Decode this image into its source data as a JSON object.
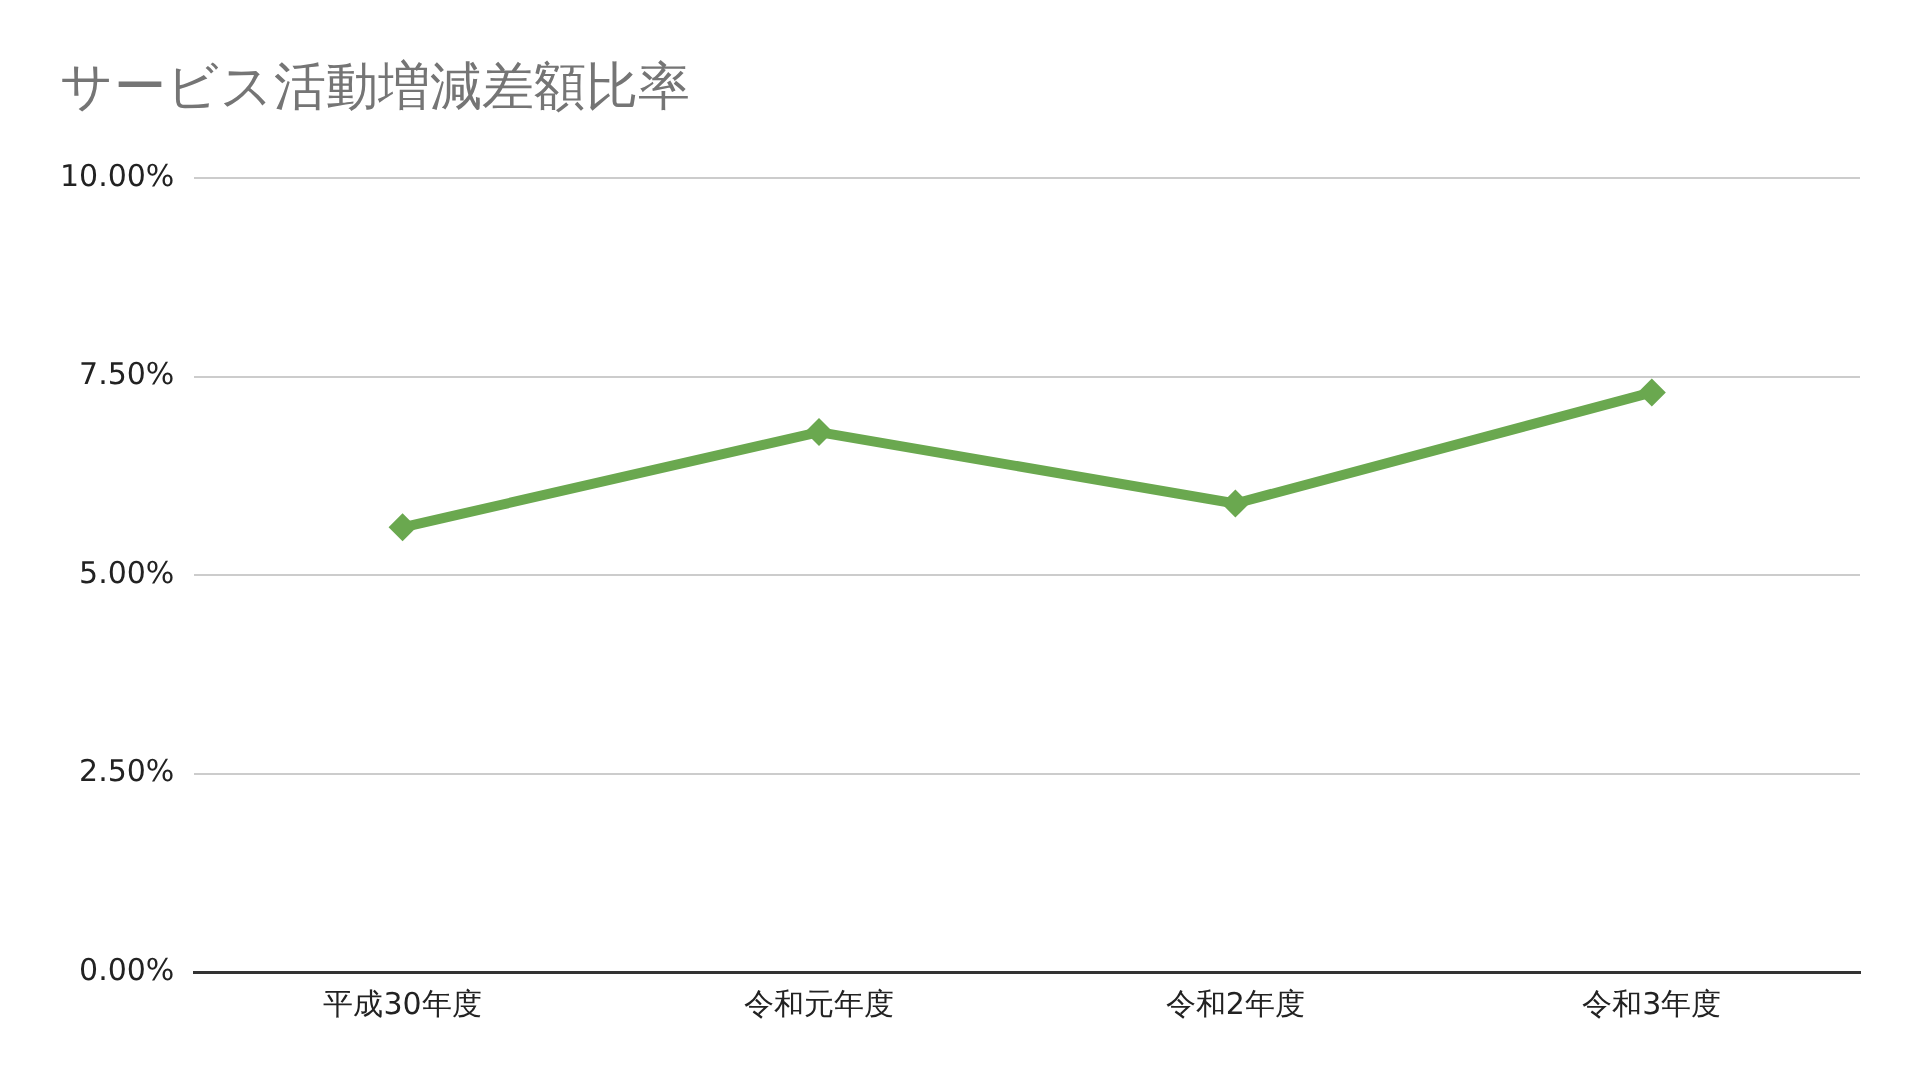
{
  "chart_data": {
    "type": "line",
    "title": "サービス活動増減差額比率",
    "categories": [
      "平成30年度",
      "令和元年度",
      "令和2年度",
      "令和3年度"
    ],
    "series": [
      {
        "color": "#6aa84f",
        "values": [
          5.6,
          6.8,
          5.9,
          7.3
        ]
      }
    ],
    "ylim": [
      0,
      10
    ],
    "yticks": [
      {
        "value": 0,
        "label": "0.00%"
      },
      {
        "value": 2.5,
        "label": "2.50%"
      },
      {
        "value": 5,
        "label": "5.00%"
      },
      {
        "value": 7.5,
        "label": "7.50%"
      },
      {
        "value": 10,
        "label": "10.00%"
      }
    ],
    "grid": "y",
    "legend": false,
    "marker": "diamond",
    "line_style": "solid"
  }
}
